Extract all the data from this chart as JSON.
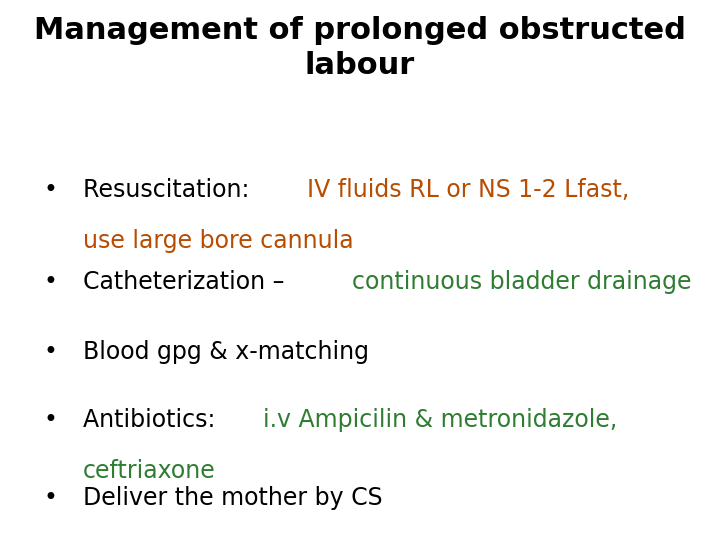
{
  "title_line1": "Management of prolonged obstructed",
  "title_line2": "labour",
  "title_color": "#000000",
  "title_fontsize": 22,
  "background_color": "#ffffff",
  "bullet_fontsize": 17,
  "orange_color": "#b84c00",
  "green_color": "#2e7d32",
  "black_color": "#000000",
  "bullets": [
    {
      "line1": [
        {
          "text": "Resuscitation: ",
          "color": "#000000"
        },
        {
          "text": "IV fluids RL or NS 1-2 Lfast,",
          "color": "#b84c00"
        }
      ],
      "line2": [
        {
          "text": "use large bore cannula",
          "color": "#b84c00"
        }
      ]
    },
    {
      "line1": [
        {
          "text": "Catheterization – ",
          "color": "#000000"
        },
        {
          "text": "continuous bladder drainage",
          "color": "#2e7d32"
        }
      ],
      "line2": []
    },
    {
      "line1": [
        {
          "text": "Blood gpg & x-matching",
          "color": "#000000"
        }
      ],
      "line2": []
    },
    {
      "line1": [
        {
          "text": "Antibiotics: ",
          "color": "#000000"
        },
        {
          "text": "i.v Ampicilin & metronidazole,",
          "color": "#2e7d32"
        }
      ],
      "line2": [
        {
          "text": "ceftriaxone",
          "color": "#2e7d32"
        }
      ]
    },
    {
      "line1": [
        {
          "text": "Deliver the mother by CS",
          "color": "#000000"
        }
      ],
      "line2": []
    }
  ]
}
